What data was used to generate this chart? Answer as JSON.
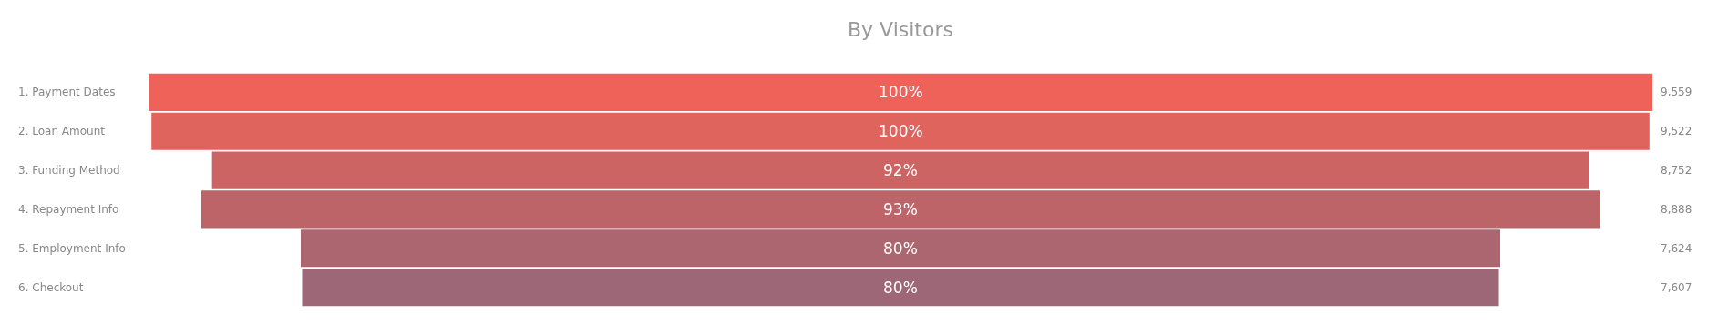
{
  "chart_data": {
    "type": "other",
    "title": "By Visitors",
    "categories": [
      "1. Payment Dates",
      "2. Loan Amount",
      "3. Funding Method",
      "4. Repayment Info",
      "5. Employment Info",
      "6. Checkout"
    ],
    "values": [
      9559,
      9522,
      8752,
      8888,
      7624,
      7607
    ],
    "value_labels": [
      "9,559",
      "9,522",
      "8,752",
      "8,888",
      "7,624",
      "7,607"
    ],
    "colors": [
      "#ef6259",
      "#e0645e",
      "#cc6463",
      "#bd6469",
      "#ac6670",
      "#9e6777"
    ],
    "annotations": [
      {
        "text": "100%",
        "y": "1. Payment Dates"
      },
      {
        "text": "100%",
        "y": "2. Loan Amount"
      },
      {
        "text": "92%",
        "y": "3. Funding Method"
      },
      {
        "text": "93%",
        "y": "4. Repayment Info"
      },
      {
        "text": "80%",
        "y": "5. Employment Info"
      },
      {
        "text": "80%",
        "y": "6. Checkout"
      }
    ]
  }
}
